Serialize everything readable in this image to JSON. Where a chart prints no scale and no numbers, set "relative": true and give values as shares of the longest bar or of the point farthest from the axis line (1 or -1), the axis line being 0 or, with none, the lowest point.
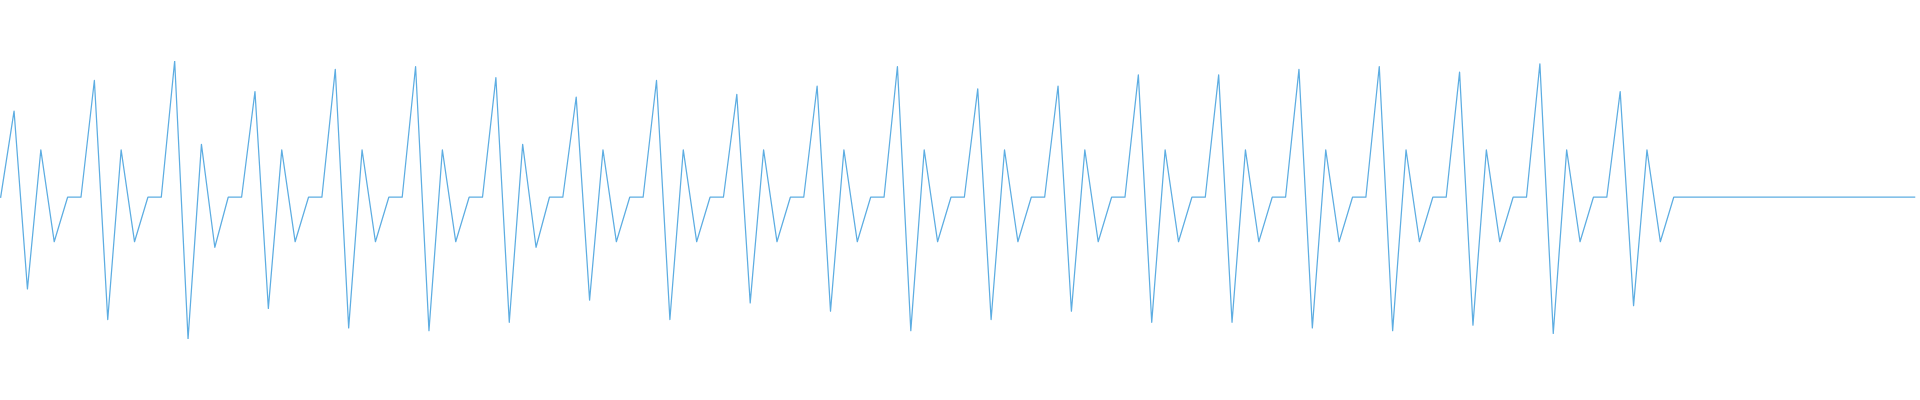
{
  "chart_data": {
    "type": "line",
    "relative": true,
    "color": "#5dade2",
    "legend": false,
    "marker": "none",
    "line_style": "solid",
    "categories": [
      null,
      null,
      null,
      null,
      null,
      null,
      null,
      null,
      null,
      null,
      null,
      null,
      null,
      null,
      null,
      null,
      null,
      null,
      null,
      null,
      null,
      null,
      null,
      null,
      null,
      null,
      null,
      null,
      null,
      null,
      null,
      null,
      null,
      null,
      null,
      null,
      null,
      null,
      null,
      null,
      null,
      null,
      null,
      null,
      null,
      null,
      null,
      null,
      null,
      null,
      null,
      null,
      null,
      null,
      null,
      null,
      null,
      null,
      null,
      null,
      null,
      null,
      null,
      null,
      null,
      null,
      null,
      null,
      null,
      null,
      null,
      null,
      null,
      null,
      null,
      null,
      null,
      null,
      null,
      null,
      null,
      null,
      null,
      null,
      null,
      null,
      null,
      null,
      null,
      null,
      null,
      null,
      null,
      null,
      null,
      null,
      null,
      null,
      null,
      null,
      null,
      null,
      null,
      null,
      null,
      null,
      null,
      null,
      null,
      null,
      null,
      null,
      null,
      null,
      null,
      null,
      null,
      null,
      null,
      null,
      null,
      null,
      null,
      null,
      null,
      null,
      null,
      null,
      null,
      null,
      null,
      null,
      null,
      null,
      null,
      null,
      null,
      null,
      null,
      null,
      null,
      null,
      null,
      null
    ],
    "values": [
      0.51,
      0.82,
      0.18,
      0.68,
      0.35,
      0.51,
      0.51,
      0.93,
      0.07,
      0.68,
      0.35,
      0.51,
      0.51,
      1.0,
      0.0,
      0.7,
      0.33,
      0.51,
      0.51,
      0.89,
      0.11,
      0.68,
      0.35,
      0.51,
      0.51,
      0.97,
      0.04,
      0.68,
      0.35,
      0.51,
      0.51,
      0.98,
      0.03,
      0.68,
      0.35,
      0.51,
      0.51,
      0.94,
      0.06,
      0.7,
      0.33,
      0.51,
      0.51,
      0.87,
      0.14,
      0.68,
      0.35,
      0.51,
      0.51,
      0.93,
      0.07,
      0.68,
      0.35,
      0.51,
      0.51,
      0.88,
      0.13,
      0.68,
      0.35,
      0.51,
      0.51,
      0.91,
      0.1,
      0.68,
      0.35,
      0.51,
      0.51,
      0.98,
      0.03,
      0.68,
      0.35,
      0.51,
      0.51,
      0.9,
      0.07,
      0.68,
      0.35,
      0.51,
      0.51,
      0.91,
      0.1,
      0.68,
      0.35,
      0.51,
      0.51,
      0.95,
      0.06,
      0.68,
      0.35,
      0.51,
      0.51,
      0.95,
      0.06,
      0.68,
      0.35,
      0.51,
      0.51,
      0.97,
      0.04,
      0.68,
      0.35,
      0.51,
      0.51,
      0.98,
      0.03,
      0.68,
      0.35,
      0.51,
      0.51,
      0.96,
      0.05,
      0.68,
      0.35,
      0.51,
      0.51,
      0.99,
      0.02,
      0.68,
      0.35,
      0.51,
      0.51,
      0.89,
      0.12,
      0.68,
      0.35,
      0.51,
      0.51,
      0.51,
      0.51,
      0.51,
      0.51,
      0.51,
      0.51,
      0.51,
      0.51,
      0.51,
      0.51,
      0.51,
      0.51,
      0.51,
      0.51,
      0.51,
      0.51,
      0.51
    ]
  }
}
